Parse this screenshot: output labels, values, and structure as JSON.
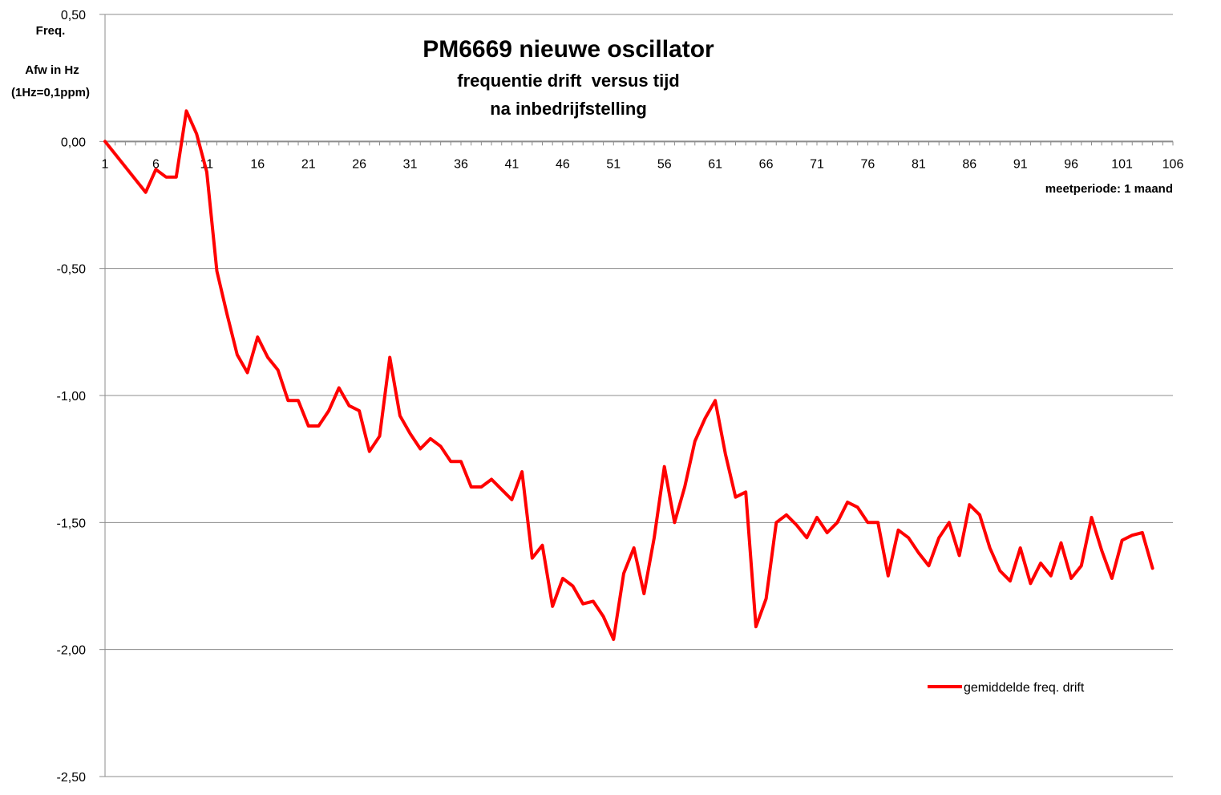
{
  "chart_data": {
    "type": "line",
    "title": "PM6669 nieuwe oscillator",
    "subtitle_lines": [
      "frequentie drift  versus tijd",
      "na inbedrijfstelling"
    ],
    "ylabel_lines": [
      "Freq.",
      "Afw in Hz",
      "(1Hz=0,1ppm)"
    ],
    "xlabel": "meetperiode: 1 maand",
    "ylim": [
      -2.5,
      0.5
    ],
    "y_ticks": [
      "0,50",
      "0,00",
      "-0,50",
      "-1,00",
      "-1,50",
      "-2,00",
      "-2,50"
    ],
    "x_tick_labels": [
      "1",
      "6",
      "11",
      "16",
      "21",
      "26",
      "31",
      "36",
      "41",
      "46",
      "51",
      "56",
      "61",
      "66",
      "71",
      "76",
      "81",
      "86",
      "91",
      "96",
      "101",
      "106"
    ],
    "x_range": [
      1,
      106
    ],
    "grid": "horizontal",
    "legend_position": "lower-right",
    "colors": {
      "series": "#ff0000",
      "grid": "#8c8c8c",
      "axis": "#8c8c8c"
    },
    "series": [
      {
        "name": "gemiddelde freq. drift",
        "x": [
          1,
          5,
          6,
          7,
          8,
          9,
          10,
          11,
          12,
          13,
          14,
          15,
          16,
          17,
          18,
          19,
          20,
          21,
          22,
          23,
          24,
          25,
          26,
          27,
          28,
          29,
          30,
          31,
          32,
          33,
          34,
          35,
          36,
          37,
          38,
          39,
          40,
          41,
          42,
          43,
          44,
          45,
          46,
          47,
          48,
          49,
          50,
          51,
          52,
          53,
          54,
          55,
          56,
          57,
          58,
          59,
          60,
          61,
          62,
          63,
          64,
          65,
          66,
          67,
          68,
          69,
          70,
          71,
          72,
          73,
          74,
          75,
          76,
          77,
          78,
          79,
          80,
          81,
          82,
          83,
          84,
          85,
          86,
          87,
          88,
          89,
          90,
          91,
          92,
          93,
          94,
          95,
          96,
          97,
          98,
          99,
          100,
          101,
          102,
          103,
          104
        ],
        "values": [
          0.0,
          -0.2,
          -0.11,
          -0.14,
          -0.14,
          0.12,
          0.03,
          -0.12,
          -0.51,
          -0.68,
          -0.84,
          -0.91,
          -0.77,
          -0.85,
          -0.9,
          -1.02,
          -1.02,
          -1.12,
          -1.12,
          -1.06,
          -0.97,
          -1.04,
          -1.06,
          -1.22,
          -1.16,
          -0.85,
          -1.08,
          -1.15,
          -1.21,
          -1.17,
          -1.2,
          -1.26,
          -1.26,
          -1.36,
          -1.36,
          -1.33,
          -1.37,
          -1.41,
          -1.3,
          -1.64,
          -1.59,
          -1.83,
          -1.72,
          -1.75,
          -1.82,
          -1.81,
          -1.87,
          -1.96,
          -1.7,
          -1.6,
          -1.78,
          -1.56,
          -1.28,
          -1.5,
          -1.36,
          -1.18,
          -1.09,
          -1.02,
          -1.23,
          -1.4,
          -1.38,
          -1.91,
          -1.8,
          -1.5,
          -1.47,
          -1.51,
          -1.56,
          -1.48,
          -1.54,
          -1.5,
          -1.42,
          -1.44,
          -1.5,
          -1.5,
          -1.71,
          -1.53,
          -1.56,
          -1.62,
          -1.67,
          -1.56,
          -1.5,
          -1.63,
          -1.43,
          -1.47,
          -1.6,
          -1.69,
          -1.73,
          -1.6,
          -1.74,
          -1.66,
          -1.71,
          -1.58,
          -1.72,
          -1.67,
          -1.48,
          -1.61,
          -1.72,
          -1.57,
          -1.55,
          -1.54,
          -1.68
        ]
      }
    ]
  }
}
